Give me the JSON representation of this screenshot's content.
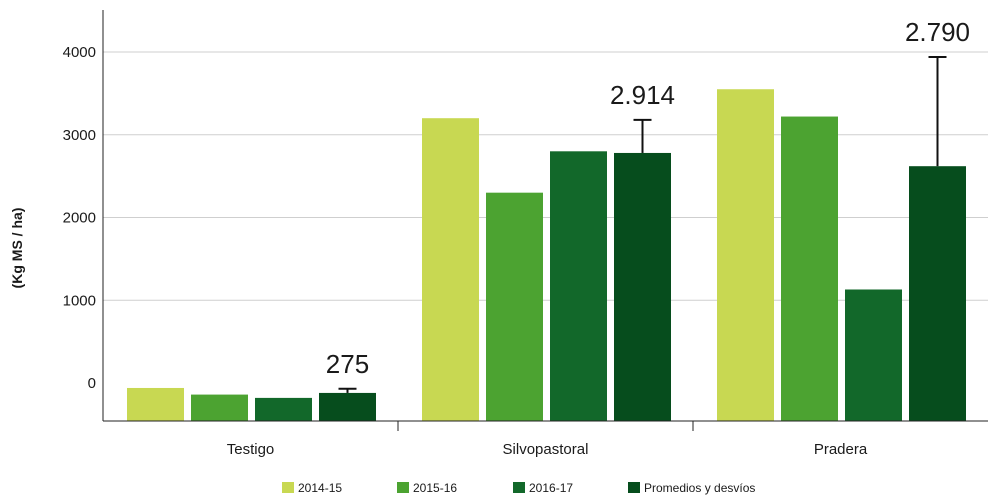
{
  "chart_data": {
    "type": "bar",
    "title": "",
    "xlabel": "",
    "ylabel": "(Kg MS / ha)",
    "ylim": [
      -400,
      4550
    ],
    "yticks": [
      0,
      1000,
      2000,
      3000,
      4000
    ],
    "grid": true,
    "legend_position": "bottom",
    "categories": [
      "Testigo",
      "Silvopastoral",
      "Pradera"
    ],
    "series": [
      {
        "name": "2014-15",
        "color": "#c8d852",
        "values": [
          -60,
          3200,
          3550
        ]
      },
      {
        "name": "2015-16",
        "color": "#4ca331",
        "values": [
          -140,
          2300,
          3220
        ]
      },
      {
        "name": "2016-17",
        "color": "#12682a",
        "values": [
          -180,
          2800,
          1130
        ]
      },
      {
        "name": "Promedios y desvíos",
        "color": "#064d1d",
        "values": [
          -120,
          2780,
          2620
        ],
        "error_upper": [
          -70,
          3180,
          3940
        ]
      }
    ],
    "data_labels": [
      "275",
      "2.914",
      "2.790"
    ]
  }
}
